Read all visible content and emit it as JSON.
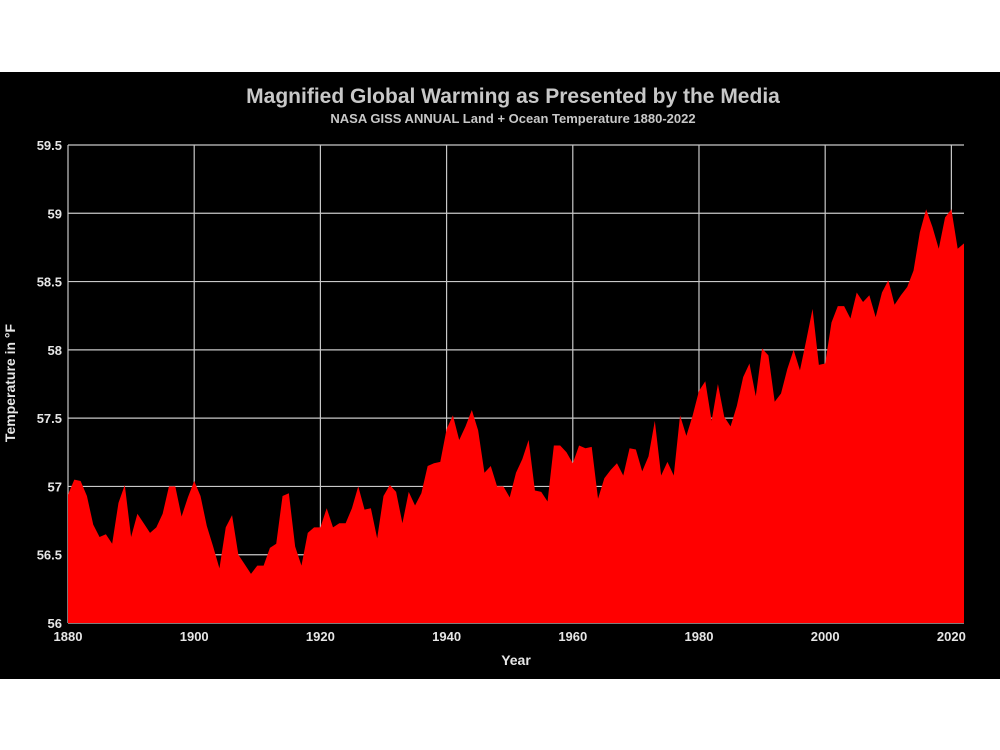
{
  "chart_data": {
    "type": "area",
    "title": "Magnified Global Warming as Presented by the Media",
    "subtitle": "NASA GISS ANNUAL Land + Ocean Temperature 1880-2022",
    "xlabel": "Year",
    "ylabel": "Temperature in °F",
    "xlim": [
      1880,
      2022
    ],
    "ylim": [
      56,
      59.5
    ],
    "x_ticks": [
      1880,
      1900,
      1920,
      1940,
      1960,
      1980,
      2000,
      2020
    ],
    "y_ticks": [
      56,
      56.5,
      57,
      57.5,
      58,
      58.5,
      59,
      59.5
    ],
    "x_tick_labels": [
      "1880",
      "1900",
      "1920",
      "1940",
      "1960",
      "1980",
      "2000",
      "2020"
    ],
    "y_tick_labels": [
      "56",
      "56.5",
      "57",
      "57.5",
      "58",
      "58.5",
      "59",
      "59.5"
    ],
    "grid": true,
    "colors": {
      "fill": "#ff0000",
      "background": "#000000",
      "grid": "#c8c8c8",
      "text": "#e6e6e6",
      "title": "#c8c8c8"
    },
    "series": [
      {
        "name": "NASA GISS Annual Land + Ocean Temperature",
        "x_start": 1880,
        "x_step": 1,
        "values": [
          56.94,
          57.05,
          57.04,
          56.93,
          56.72,
          56.63,
          56.65,
          56.58,
          56.88,
          57.01,
          56.63,
          56.8,
          56.73,
          56.66,
          56.7,
          56.8,
          57.0,
          57.0,
          56.78,
          56.92,
          57.04,
          56.93,
          56.71,
          56.56,
          56.4,
          56.7,
          56.79,
          56.5,
          56.43,
          56.36,
          56.42,
          56.42,
          56.55,
          56.58,
          56.93,
          56.95,
          56.56,
          56.42,
          56.66,
          56.7,
          56.7,
          56.84,
          56.7,
          56.73,
          56.73,
          56.84,
          57.0,
          56.83,
          56.84,
          56.62,
          56.93,
          57.01,
          56.96,
          56.73,
          56.96,
          56.86,
          56.95,
          57.15,
          57.17,
          57.18,
          57.42,
          57.52,
          57.34,
          57.44,
          57.56,
          57.41,
          57.1,
          57.15,
          57.0,
          57.0,
          56.92,
          57.1,
          57.2,
          57.34,
          56.97,
          56.96,
          56.89,
          57.3,
          57.3,
          57.25,
          57.17,
          57.3,
          57.28,
          57.29,
          56.91,
          57.06,
          57.12,
          57.17,
          57.08,
          57.28,
          57.27,
          57.11,
          57.22,
          57.48,
          57.08,
          57.18,
          57.08,
          57.52,
          57.37,
          57.52,
          57.7,
          57.77,
          57.48,
          57.75,
          57.51,
          57.44,
          57.59,
          57.8,
          57.9,
          57.66,
          58.01,
          57.96,
          57.62,
          57.68,
          57.86,
          58.0,
          57.85,
          58.07,
          58.3,
          57.89,
          57.9,
          58.2,
          58.32,
          58.32,
          58.23,
          58.42,
          58.35,
          58.4,
          58.24,
          58.42,
          58.51,
          58.33,
          58.4,
          58.46,
          58.58,
          58.86,
          59.03,
          58.9,
          58.74,
          58.97,
          59.03,
          58.74,
          58.78
        ]
      }
    ]
  }
}
